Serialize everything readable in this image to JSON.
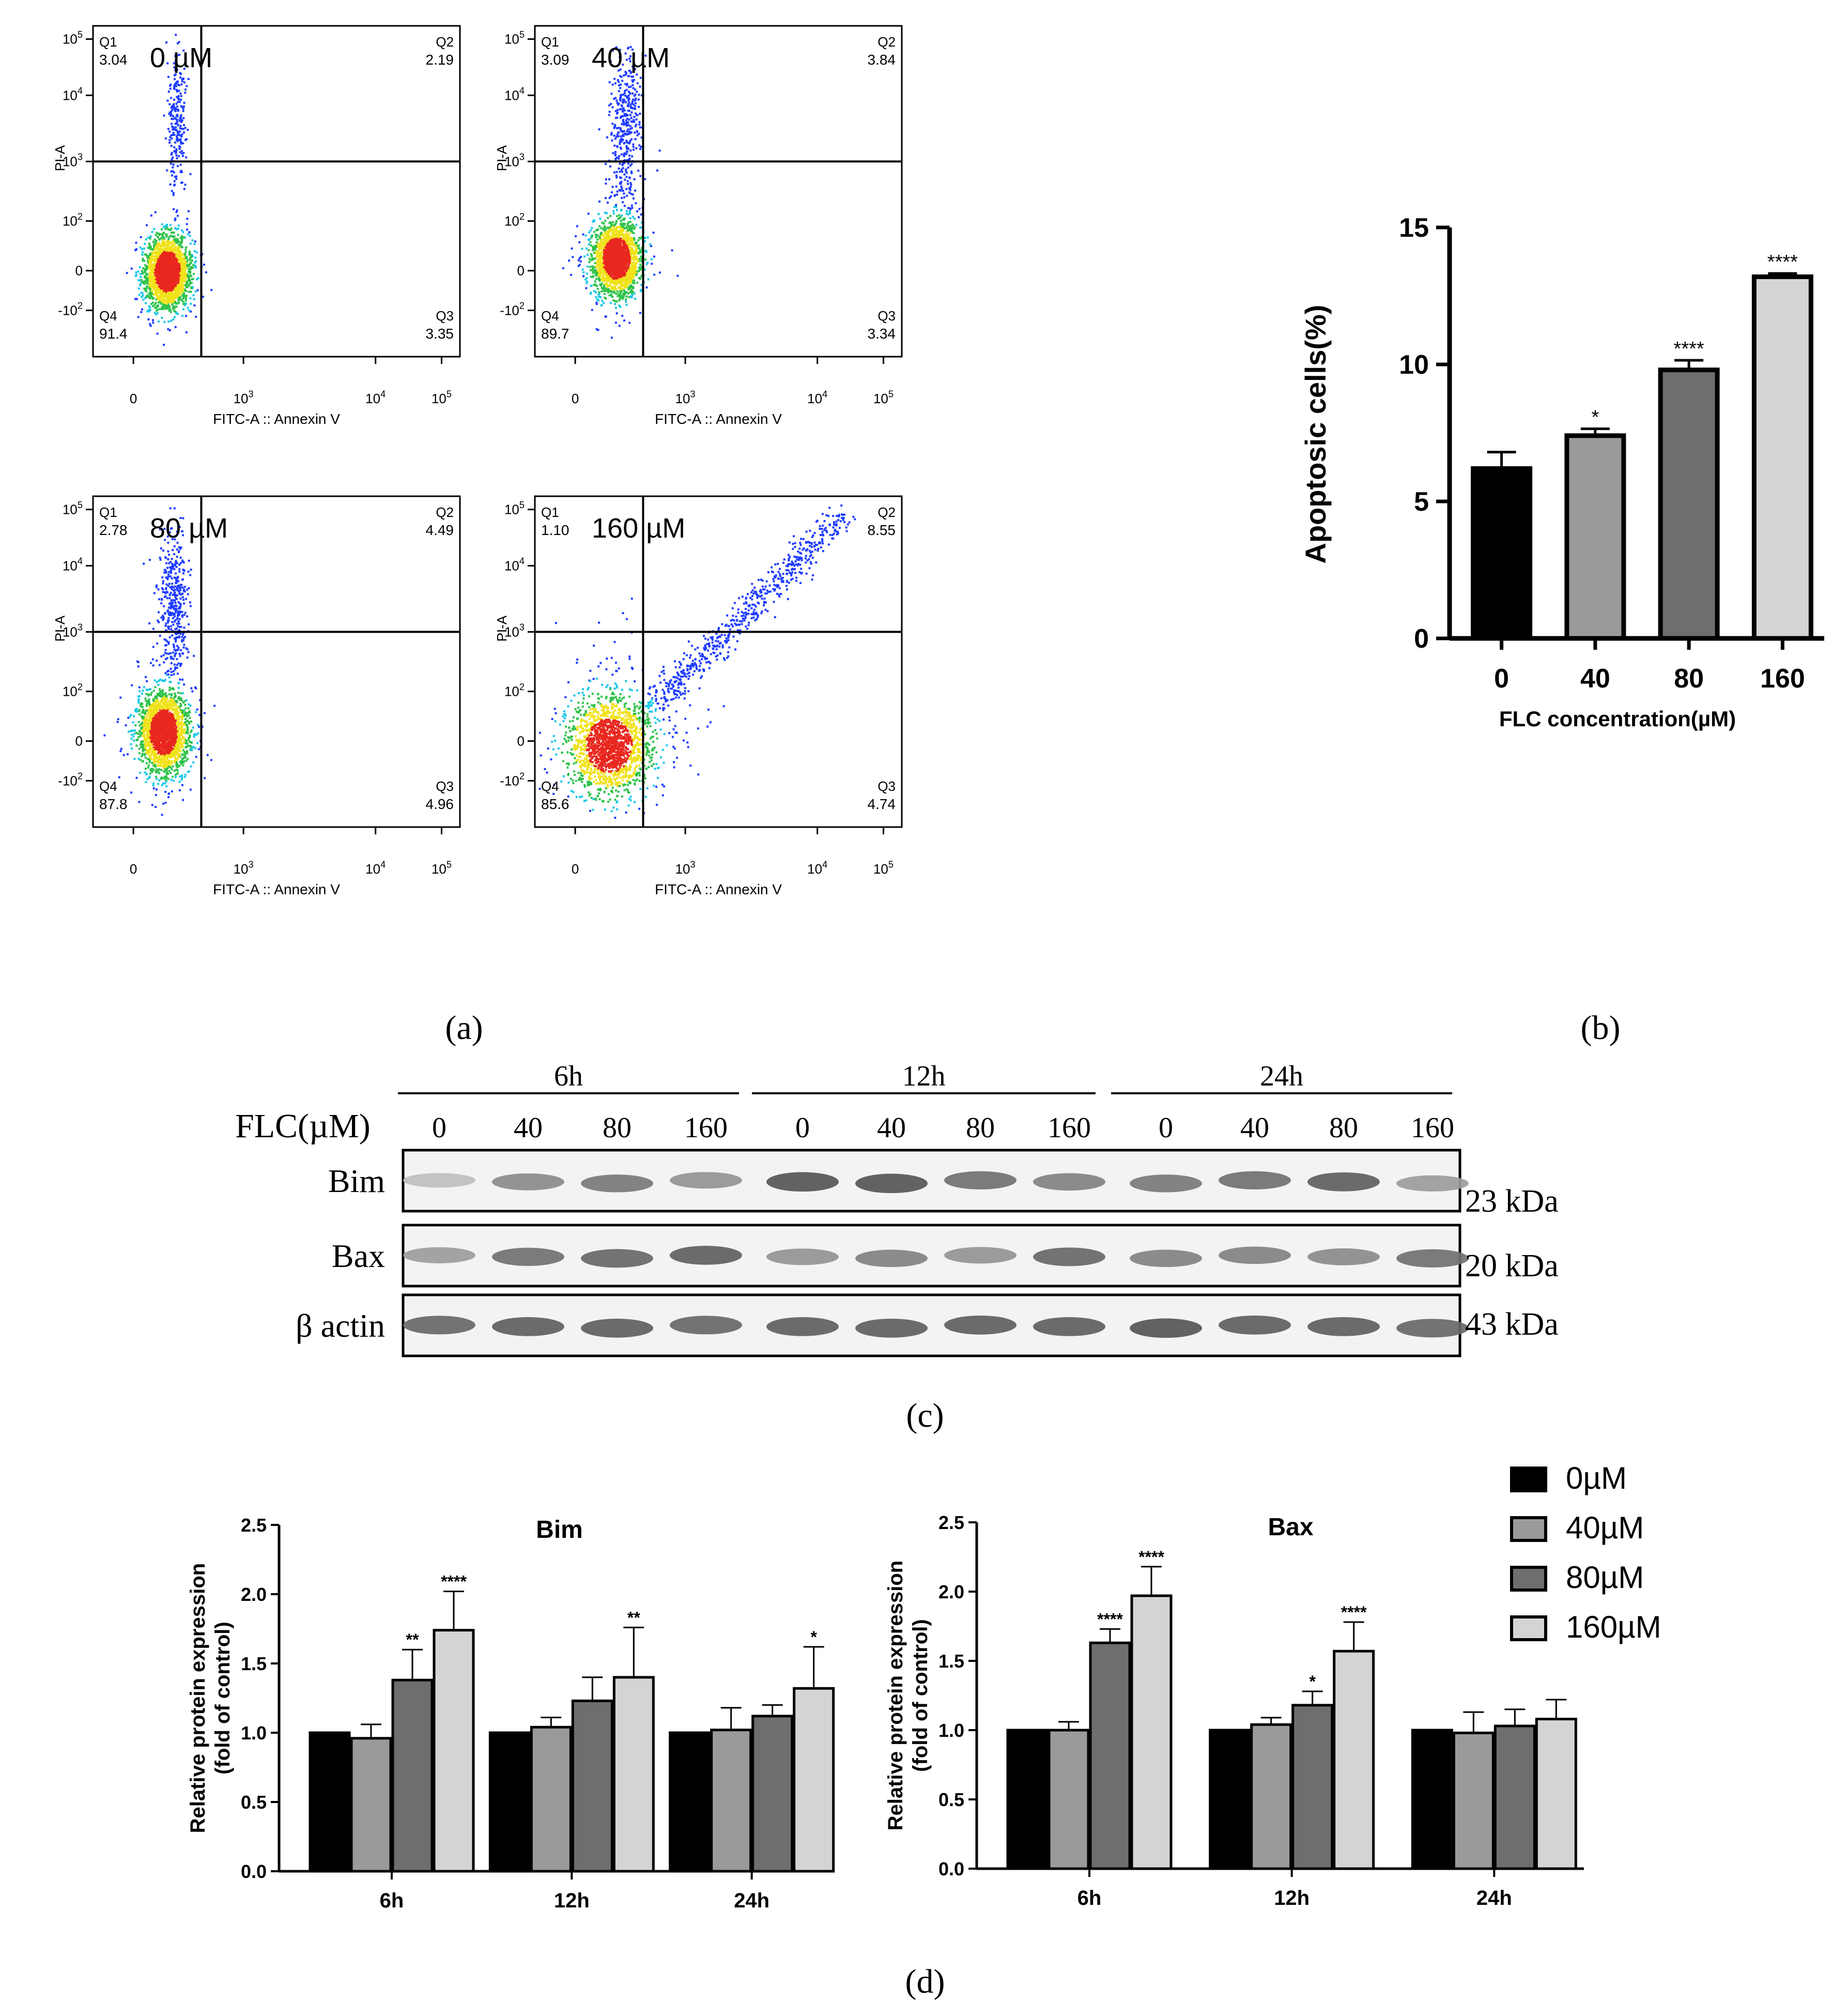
{
  "panel_labels": {
    "a": "(a)",
    "b": "(b)",
    "c": "(c)",
    "d": "(d)"
  },
  "flow": {
    "x_label": "FITC-A :: Annexin V",
    "y_label": "PI-A",
    "x_ticks": [
      "0",
      "10",
      "10",
      "10"
    ],
    "x_tick_exp": [
      "",
      "3",
      "4",
      "5"
    ],
    "y_ticks": [
      "10",
      "10",
      "10",
      "10",
      "0",
      "-10"
    ],
    "y_tick_exp": [
      "5",
      "4",
      "3",
      "2",
      "",
      "2"
    ],
    "colors": {
      "blue": "#1f3cff",
      "cyan": "#19c7e8",
      "green": "#2ec24a",
      "yellow": "#f0e21a",
      "red": "#e8271f"
    }
  },
  "chart_data": [
    {
      "type": "scatter",
      "subtype": "flow-cytometry",
      "conditions": [
        "0 µM",
        "40 µM",
        "80 µM",
        "160 µM"
      ],
      "quadrant_names": [
        "Q1",
        "Q2",
        "Q3",
        "Q4"
      ],
      "quadrants": [
        {
          "Q1": "3.04",
          "Q2": "2.19",
          "Q3": "3.35",
          "Q4": "91.4"
        },
        {
          "Q1": "3.09",
          "Q2": "3.84",
          "Q3": "3.34",
          "Q4": "89.7"
        },
        {
          "Q1": "2.78",
          "Q2": "4.49",
          "Q3": "4.96",
          "Q4": "87.8"
        },
        {
          "Q1": "1.10",
          "Q2": "8.55",
          "Q3": "4.74",
          "Q4": "85.6"
        }
      ],
      "xlabel": "FITC-A :: Annexin V",
      "ylabel": "PI-A"
    },
    {
      "type": "bar",
      "categories": [
        "0",
        "40",
        "80",
        "160"
      ],
      "values": [
        6.2,
        7.4,
        9.8,
        13.2
      ],
      "errors": [
        0.6,
        0.25,
        0.35,
        0.12
      ],
      "significance": [
        "",
        "*",
        "****",
        "****"
      ],
      "colors": [
        "#000000",
        "#9a9a9a",
        "#6e6e6e",
        "#d4d4d4"
      ],
      "xlabel": "FLC concentration(µM)",
      "ylabel": "Apoptosic cells(%)",
      "ylim": [
        0,
        15
      ],
      "yticks": [
        "0",
        "5",
        "10",
        "15"
      ]
    },
    {
      "type": "bar",
      "title": "Bim",
      "categories": [
        "6h",
        "12h",
        "24h"
      ],
      "series": [
        {
          "name": "0µM",
          "values": [
            1.0,
            1.0,
            1.0
          ],
          "errors": [
            0,
            0,
            0
          ],
          "sig": [
            "",
            "",
            ""
          ]
        },
        {
          "name": "40µM",
          "values": [
            0.96,
            1.04,
            1.02
          ],
          "errors": [
            0.1,
            0.07,
            0.16
          ],
          "sig": [
            "",
            "",
            ""
          ]
        },
        {
          "name": "80µM",
          "values": [
            1.38,
            1.23,
            1.12
          ],
          "errors": [
            0.22,
            0.17,
            0.08
          ],
          "sig": [
            "**",
            "",
            ""
          ]
        },
        {
          "name": "160µM",
          "values": [
            1.74,
            1.4,
            1.32
          ],
          "errors": [
            0.28,
            0.36,
            0.3
          ],
          "sig": [
            "****",
            "**",
            "*"
          ]
        }
      ],
      "ylabel": "Relative protein expression (fold of control)",
      "ylim": [
        0,
        2.5
      ],
      "yticks": [
        "0.0",
        "0.5",
        "1.0",
        "1.5",
        "2.0",
        "2.5"
      ]
    },
    {
      "type": "bar",
      "title": "Bax",
      "categories": [
        "6h",
        "12h",
        "24h"
      ],
      "series": [
        {
          "name": "0µM",
          "values": [
            1.0,
            1.0,
            1.0
          ],
          "errors": [
            0,
            0,
            0
          ],
          "sig": [
            "",
            "",
            ""
          ]
        },
        {
          "name": "40µM",
          "values": [
            1.0,
            1.04,
            0.98
          ],
          "errors": [
            0.06,
            0.05,
            0.15
          ],
          "sig": [
            "",
            "",
            ""
          ]
        },
        {
          "name": "80µM",
          "values": [
            1.63,
            1.18,
            1.03
          ],
          "errors": [
            0.1,
            0.1,
            0.12
          ],
          "sig": [
            "****",
            "*",
            ""
          ]
        },
        {
          "name": "160µM",
          "values": [
            1.97,
            1.57,
            1.08
          ],
          "errors": [
            0.21,
            0.21,
            0.14
          ],
          "sig": [
            "****",
            "****",
            ""
          ]
        }
      ],
      "ylabel": "Relative protein expression (fold of control)",
      "ylim": [
        0,
        2.5
      ],
      "yticks": [
        "0.0",
        "0.5",
        "1.0",
        "1.5",
        "2.0",
        "2.5"
      ],
      "legend": [
        "0µM",
        "40µM",
        "80µM",
        "160µM"
      ],
      "legend_colors": [
        "#000000",
        "#9a9a9a",
        "#6e6e6e",
        "#d4d4d4"
      ]
    }
  ],
  "blot": {
    "axis_label": "FLC(µM)",
    "time_groups": [
      "6h",
      "12h",
      "24h"
    ],
    "concentrations": [
      "0",
      "40",
      "80",
      "160",
      "0",
      "40",
      "80",
      "160",
      "0",
      "40",
      "80",
      "160"
    ],
    "rows": [
      {
        "name": "Bim",
        "kda": "23 kDa",
        "intensity": [
          0.25,
          0.55,
          0.65,
          0.5,
          0.85,
          0.85,
          0.7,
          0.6,
          0.65,
          0.7,
          0.8,
          0.45
        ]
      },
      {
        "name": "Bax",
        "kda": "20 kDa",
        "intensity": [
          0.45,
          0.7,
          0.75,
          0.8,
          0.5,
          0.6,
          0.5,
          0.75,
          0.6,
          0.6,
          0.55,
          0.7
        ]
      },
      {
        "name": "β actin",
        "kda": "43 kDa",
        "intensity": [
          0.75,
          0.8,
          0.8,
          0.75,
          0.8,
          0.8,
          0.8,
          0.8,
          0.85,
          0.8,
          0.8,
          0.75
        ]
      }
    ]
  }
}
